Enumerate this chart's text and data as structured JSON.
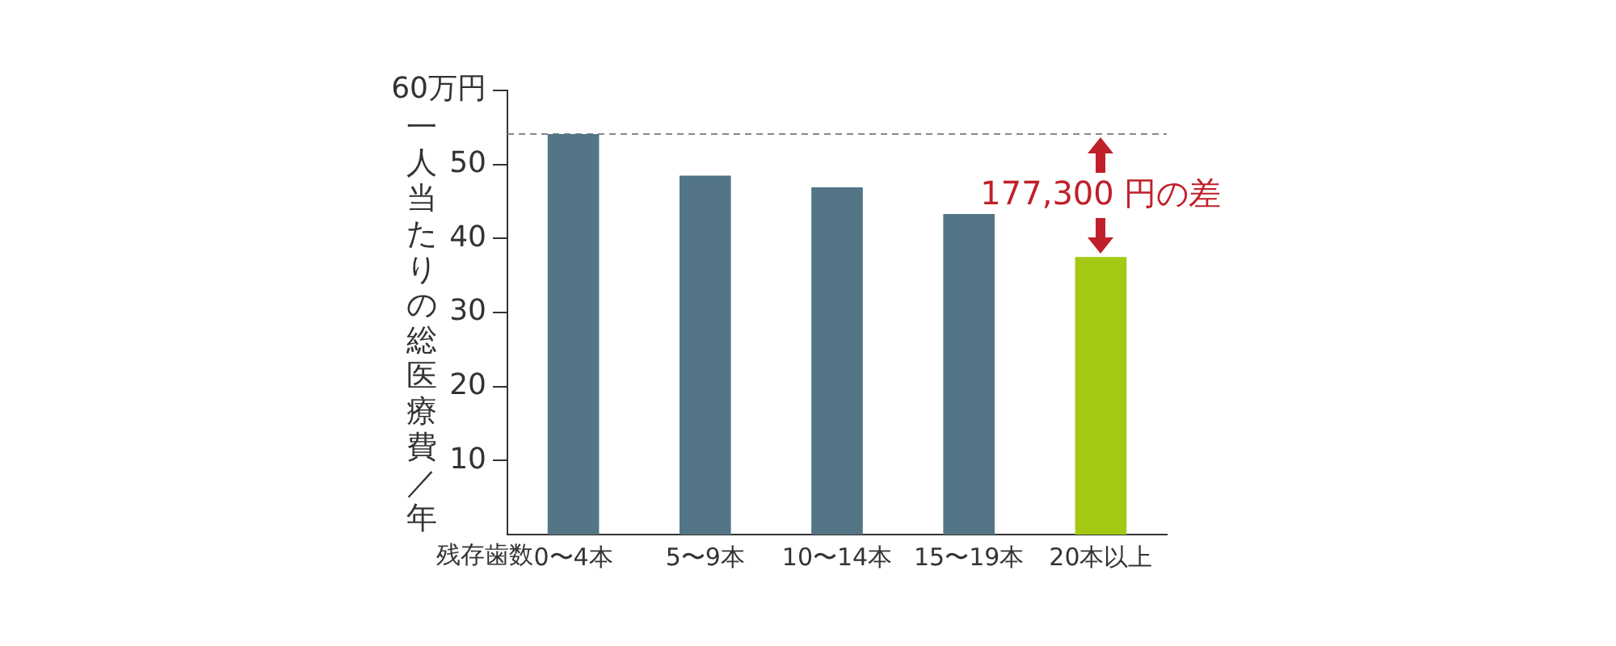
{
  "chart_data": {
    "type": "bar",
    "ylabel": "一人当たりの総医療費／年",
    "xlabel": "残存歯数",
    "categories": [
      "0〜4本",
      "5〜9本",
      "10〜14本",
      "15〜19本",
      "20本以上"
    ],
    "values": [
      54.1,
      48.5,
      46.9,
      43.3,
      37.5
    ],
    "colors": [
      "#537585",
      "#537585",
      "#537585",
      "#537585",
      "#a4c912"
    ],
    "ylim": [
      0,
      60
    ],
    "yticks": [
      10,
      20,
      30,
      40,
      50,
      {
        "value": 60,
        "label": "60万円"
      }
    ],
    "grid": false,
    "legend": false,
    "ref_lines": [
      {
        "axis": "y",
        "value": 54.1,
        "color": "#888888",
        "line_style": "dashed"
      }
    ],
    "annotations": [
      "177,300 円の差"
    ]
  }
}
